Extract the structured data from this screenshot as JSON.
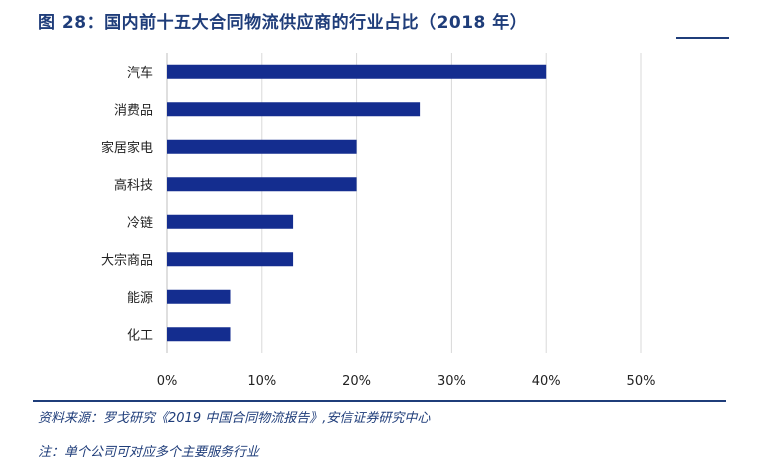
{
  "figure": {
    "title": "图 28：国内前十五大合同物流供应商的行业占比（2018 年）",
    "source": "资料来源：罗戈研究《2019 中国合同物流报告》,安信证券研究中心",
    "note": "注：单个公司可对应多个主要服务行业"
  },
  "colors": {
    "bar": "#142d8f",
    "grid": "#d9d9d9",
    "axis": "#bfbfbf",
    "title": "#1f3d7a"
  },
  "chart_data": {
    "type": "bar",
    "orientation": "horizontal",
    "categories": [
      "汽车",
      "消费品",
      "家居家电",
      "高科技",
      "冷链",
      "大宗商品",
      "能源",
      "化工"
    ],
    "values": [
      40,
      26.7,
      20,
      20,
      13.3,
      13.3,
      6.7,
      6.7
    ],
    "value_unit": "%",
    "xlim": [
      0,
      50
    ],
    "xticks": [
      0,
      10,
      20,
      30,
      40,
      50
    ],
    "xtick_labels": [
      "0%",
      "10%",
      "20%",
      "30%",
      "40%",
      "50%"
    ],
    "grid": true,
    "legend": "none"
  }
}
